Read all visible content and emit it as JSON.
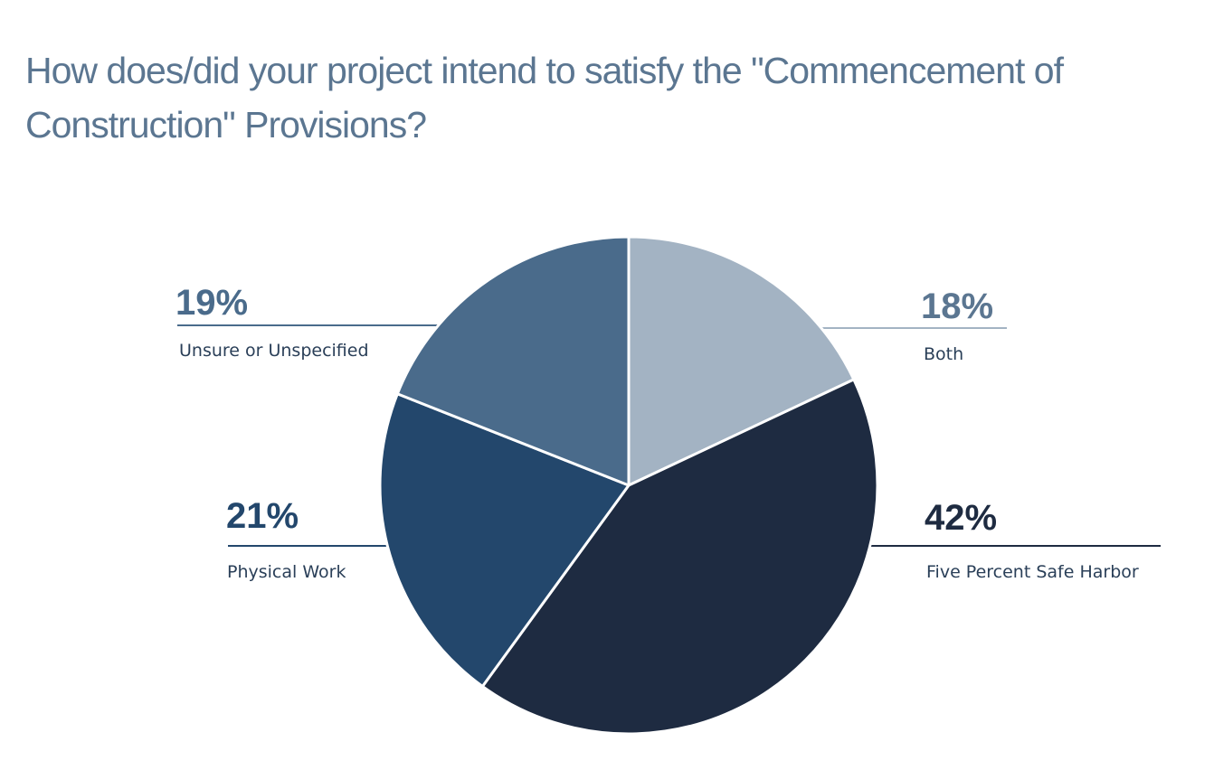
{
  "chart_data": {
    "type": "pie",
    "title": "How does/did your project intend to satisfy the \"Commencement of Construction\" Provisions?",
    "slices": [
      {
        "label": "Both",
        "value": 18,
        "value_label": "18%",
        "color": "#a3b3c3",
        "text_color": "#5b7691",
        "line_color": "#a3b3c3"
      },
      {
        "label": "Five Percent Safe Harbor",
        "value": 42,
        "value_label": "42%",
        "color": "#1e2b41",
        "text_color": "#1e2b41",
        "line_color": "#1e2b41"
      },
      {
        "label": "Physical Work",
        "value": 21,
        "value_label": "21%",
        "color": "#23476c",
        "text_color": "#23476c",
        "line_color": "#23476c"
      },
      {
        "label": "Unsure or Unspecified",
        "value": 19,
        "value_label": "19%",
        "color": "#4a6b8b",
        "text_color": "#4a6b8b",
        "line_color": "#4a6b8b"
      }
    ],
    "start_angle_deg": 0,
    "direction": "clockwise",
    "slice_border_color": "#ffffff",
    "legend": "none"
  }
}
